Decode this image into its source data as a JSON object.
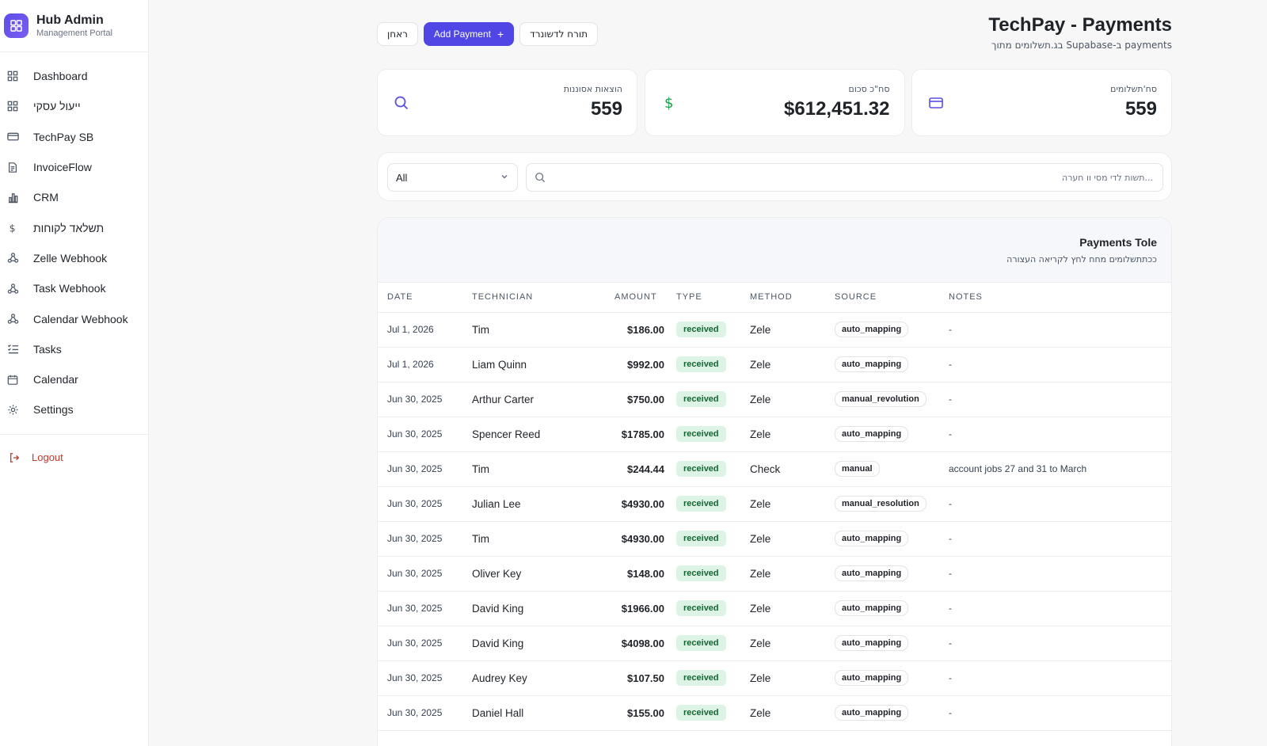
{
  "sidebar": {
    "brand_title": "Hub Admin",
    "brand_subtitle": "Management Portal",
    "items": [
      {
        "label": "Dashboard",
        "icon": "grid-icon"
      },
      {
        "label": "ייעול עסקי",
        "icon": "grid-icon"
      },
      {
        "label": "TechPay SB",
        "icon": "credit-card-icon"
      },
      {
        "label": "InvoiceFlow",
        "icon": "document-icon"
      },
      {
        "label": "CRM",
        "icon": "bar-chart-icon"
      },
      {
        "label": "תשלאד לקוחות",
        "icon": "dollar-icon"
      },
      {
        "label": "Zelle Webhook",
        "icon": "webhook-icon"
      },
      {
        "label": "Task Webhook",
        "icon": "webhook-icon"
      },
      {
        "label": "Calendar Webhook",
        "icon": "webhook-icon"
      },
      {
        "label": "Tasks",
        "icon": "list-check-icon"
      },
      {
        "label": "Calendar",
        "icon": "calendar-icon"
      },
      {
        "label": "Settings",
        "icon": "gear-icon"
      }
    ],
    "logout_label": "Logout"
  },
  "header": {
    "title": "TechPay - Payments",
    "subtitle": "בג.תשלומים מתוך Supabase-ב payments",
    "btn_refresh": "ראחן",
    "btn_add": "Add Payment",
    "btn_dashboard": "תורח לדשונרד"
  },
  "stats": {
    "expenses_label": "הוצאות אסוננות",
    "expenses_value": "559",
    "total_label": "סח\"כ סכום",
    "total_value": "$612,451.32",
    "payments_label": "סח'תשלומים",
    "payments_value": "559"
  },
  "filters": {
    "select_value": "All",
    "search_placeholder": "תשות לדי מסי וו חערה..."
  },
  "table": {
    "title": "Payments Tole",
    "description": "ככתתשלומים מחח לחץ לקריאה העצורה",
    "columns": [
      "DATE",
      "TECHNICIAN",
      "AMOUNT",
      "TYPE",
      "METHOD",
      "SOURCE",
      "NOTES"
    ],
    "rows": [
      {
        "date": "Jul 1, 2026",
        "tech": "Tim",
        "amount": "$186.00",
        "type": "received",
        "method": "Zele",
        "source": "auto_mapping",
        "notes": "-"
      },
      {
        "date": "Jul 1, 2026",
        "tech": "Liam Quinn",
        "amount": "$992.00",
        "type": "received",
        "method": "Zele",
        "source": "auto_mapping",
        "notes": "-"
      },
      {
        "date": "Jun 30, 2025",
        "tech": "Arthur Carter",
        "amount": "$750.00",
        "type": "received",
        "method": "Zele",
        "source": "manual_revolution",
        "notes": "-"
      },
      {
        "date": "Jun 30, 2025",
        "tech": "Spencer Reed",
        "amount": "$1785.00",
        "type": "received",
        "method": "Zele",
        "source": "auto_mapping",
        "notes": "-"
      },
      {
        "date": "Jun 30, 2025",
        "tech": "Tim",
        "amount": "$244.44",
        "type": "received",
        "method": "Check",
        "source": "manual",
        "notes": "account jobs 27 and 31 to March"
      },
      {
        "date": "Jun 30, 2025",
        "tech": "Julian Lee",
        "amount": "$4930.00",
        "type": "received",
        "method": "Zele",
        "source": "manual_resolution",
        "notes": "-"
      },
      {
        "date": "Jun 30, 2025",
        "tech": "Tim",
        "amount": "$4930.00",
        "type": "received",
        "method": "Zele",
        "source": "auto_mapping",
        "notes": "-"
      },
      {
        "date": "Jun 30, 2025",
        "tech": "Oliver Key",
        "amount": "$148.00",
        "type": "received",
        "method": "Zele",
        "source": "auto_mapping",
        "notes": "-"
      },
      {
        "date": "Jun 30, 2025",
        "tech": "David King",
        "amount": "$1966.00",
        "type": "received",
        "method": "Zele",
        "source": "auto_mapping",
        "notes": "-"
      },
      {
        "date": "Jun 30, 2025",
        "tech": "David King",
        "amount": "$4098.00",
        "type": "received",
        "method": "Zele",
        "source": "auto_mapping",
        "notes": "-"
      },
      {
        "date": "Jun 30, 2025",
        "tech": "Audrey Key",
        "amount": "$107.50",
        "type": "received",
        "method": "Zele",
        "source": "auto_mapping",
        "notes": "-"
      },
      {
        "date": "Jun 30, 2025",
        "tech": "Daniel Hall",
        "amount": "$155.00",
        "type": "received",
        "method": "Zele",
        "source": "auto_mapping",
        "notes": "-"
      }
    ]
  },
  "colors": {
    "accent": "#4f46e5",
    "received_bg": "#dcf3e5",
    "received_text": "#166534",
    "logout": "#c0392b",
    "dollar_icon": "#16a34a"
  }
}
